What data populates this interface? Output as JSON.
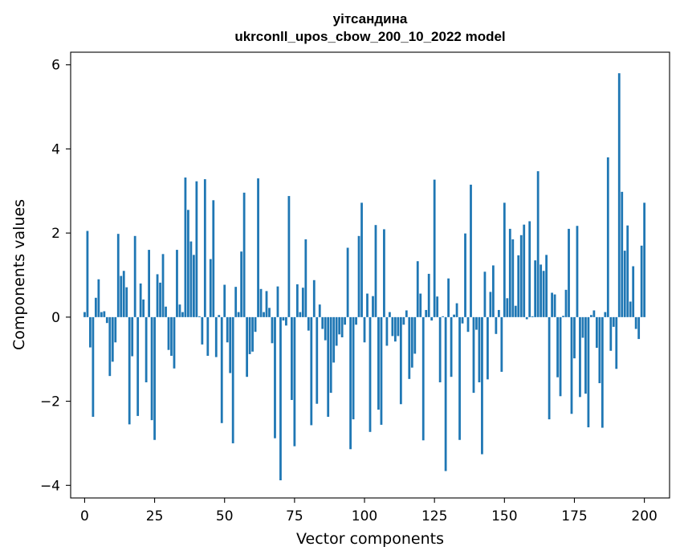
{
  "chart_data": {
    "type": "bar",
    "title": "уітсандина",
    "subtitle": "ukrconll_upos_cbow_200_10_2022 model",
    "xlabel": "Vector components",
    "ylabel": "Components values",
    "xlim": [
      -5,
      209
    ],
    "ylim": [
      -4.3,
      6.3
    ],
    "xticks": [
      0,
      25,
      50,
      75,
      100,
      125,
      150,
      175,
      200
    ],
    "xtick_labels": [
      "0",
      "25",
      "50",
      "75",
      "100",
      "125",
      "150",
      "175",
      "200"
    ],
    "yticks": [
      -4,
      -2,
      0,
      2,
      4,
      6
    ],
    "ytick_labels": [
      "−4",
      "−2",
      "0",
      "2",
      "4",
      "6"
    ],
    "grid": false,
    "bar_color": "#1f77b4",
    "values": [
      0.12,
      2.05,
      -0.72,
      -2.37,
      0.46,
      0.9,
      0.12,
      0.14,
      -0.14,
      -1.4,
      -1.06,
      -0.6,
      1.98,
      0.98,
      1.1,
      0.71,
      -2.55,
      -0.93,
      1.93,
      -2.35,
      0.8,
      0.42,
      -1.55,
      1.6,
      -2.45,
      -2.92,
      1.02,
      0.82,
      1.5,
      0.25,
      -0.78,
      -0.92,
      -1.22,
      1.6,
      0.3,
      0.12,
      3.32,
      2.55,
      1.8,
      1.48,
      3.23,
      0.02,
      -0.65,
      3.28,
      -0.92,
      1.38,
      2.78,
      -0.95,
      0.05,
      -2.52,
      0.77,
      -0.6,
      -1.33,
      -3.0,
      0.72,
      0.12,
      1.56,
      2.96,
      -1.42,
      -0.88,
      -0.82,
      -0.35,
      3.3,
      0.67,
      0.12,
      0.62,
      0.22,
      -0.62,
      -2.88,
      0.73,
      -3.88,
      -0.08,
      -0.2,
      2.88,
      -1.97,
      -3.07,
      0.78,
      0.12,
      0.7,
      1.85,
      -0.32,
      -2.57,
      0.88,
      -2.06,
      0.3,
      -0.28,
      -0.55,
      -2.37,
      -1.8,
      -1.08,
      -0.68,
      -0.41,
      -0.48,
      -0.18,
      1.65,
      -3.14,
      -2.43,
      -0.18,
      1.93,
      2.72,
      -0.6,
      0.56,
      -2.73,
      0.5,
      2.19,
      -2.2,
      -2.56,
      2.09,
      -0.68,
      0.12,
      -0.45,
      -0.58,
      -0.45,
      -2.07,
      -0.18,
      0.16,
      -1.47,
      -1.2,
      -0.87,
      1.33,
      0.56,
      -2.93,
      0.17,
      1.03,
      -0.08,
      3.27,
      0.49,
      -1.55,
      0.02,
      -3.66,
      0.92,
      -1.42,
      0.06,
      0.33,
      -2.92,
      -0.15,
      1.99,
      -0.35,
      3.15,
      -1.8,
      -0.3,
      -1.55,
      -3.26,
      1.08,
      -1.48,
      0.6,
      1.23,
      -0.4,
      0.17,
      -1.3,
      2.72,
      0.45,
      2.1,
      1.85,
      0.27,
      1.47,
      1.95,
      2.2,
      -0.05,
      2.28,
      0.02,
      1.35,
      3.47,
      1.25,
      1.1,
      1.48,
      -2.43,
      0.58,
      0.54,
      -1.43,
      -1.88,
      0.03,
      0.65,
      2.1,
      -2.3,
      -0.98,
      2.17,
      -1.9,
      -0.49,
      -1.82,
      -2.62,
      0.05,
      0.16,
      -0.73,
      -1.57,
      -2.63,
      0.12,
      3.8,
      -0.8,
      -0.23,
      -1.23,
      5.8,
      2.98,
      1.58,
      2.18,
      0.37,
      1.21,
      -0.28,
      -0.52,
      1.7,
      2.72
    ]
  }
}
